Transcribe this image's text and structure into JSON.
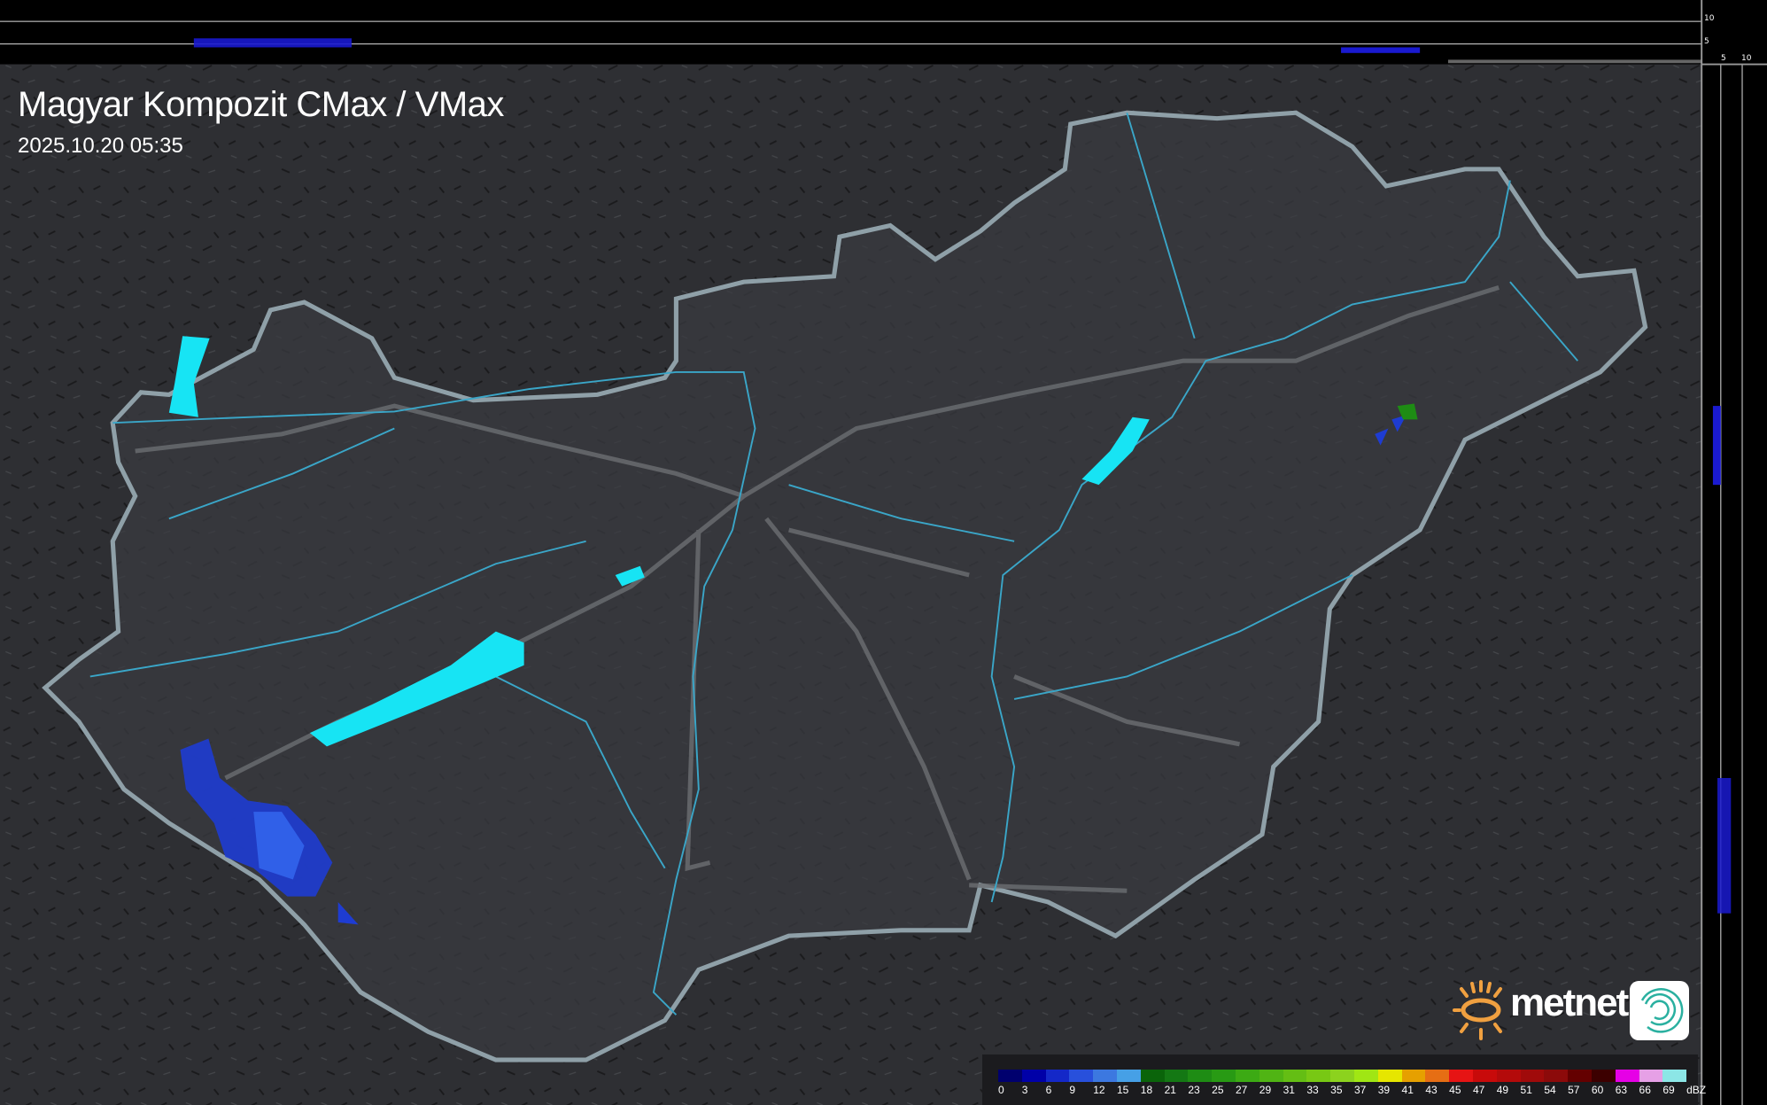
{
  "header": {
    "title": "Magyar Kompozit CMax / VMax",
    "timestamp": "2025.10.20 05:35"
  },
  "side_axes": {
    "top_ticks": [
      "10",
      "5"
    ],
    "right_ticks": [
      "5",
      "10"
    ]
  },
  "legend": {
    "unit": "dBZ",
    "labels": [
      "0",
      "3",
      "6",
      "9",
      "12",
      "15",
      "18",
      "21",
      "23",
      "25",
      "27",
      "29",
      "31",
      "33",
      "35",
      "37",
      "39",
      "41",
      "43",
      "45",
      "47",
      "49",
      "51",
      "54",
      "57",
      "60",
      "63",
      "66",
      "69"
    ],
    "colors": [
      "#00006e",
      "#0000a8",
      "#1428c8",
      "#2850dc",
      "#3c78e0",
      "#46a0e6",
      "#0a640a",
      "#147814",
      "#1e8c14",
      "#289a14",
      "#3caa14",
      "#50b414",
      "#64be14",
      "#78c814",
      "#8cd21e",
      "#a0e614",
      "#e6e600",
      "#e6a000",
      "#e66e14",
      "#e61414",
      "#c80a0a",
      "#b40a0a",
      "#a00a0a",
      "#8c0a0a",
      "#640000",
      "#3c0000",
      "#e600e6",
      "#e6a0e6",
      "#8ce6e6"
    ]
  },
  "brand": {
    "name": "metnet",
    "sun_color": "#f0a040",
    "app_color": "#2ab0a0"
  },
  "map": {
    "water_color": "#17e4f4",
    "river_color": "#3aa6c8",
    "border_color": "#8fa0a8",
    "radar_color": "#1e3cd2"
  }
}
